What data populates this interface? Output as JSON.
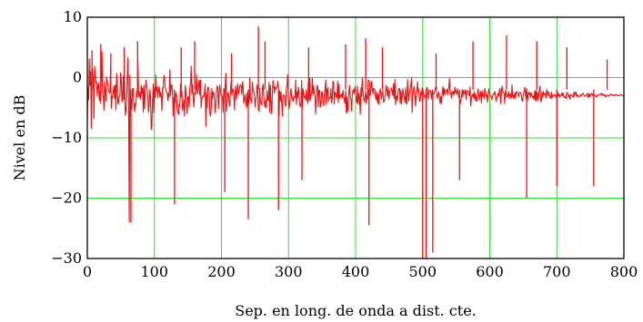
{
  "chart_data": {
    "type": "line",
    "title": "",
    "xlabel": "Sep. en long. de onda a dist. cte.",
    "ylabel": "Nivel en dB",
    "xlim": [
      0,
      800
    ],
    "ylim": [
      -30,
      10
    ],
    "x_ticks": [
      0,
      100,
      200,
      300,
      400,
      500,
      600,
      700,
      800
    ],
    "y_ticks": [
      10,
      0,
      -10,
      -20,
      -30
    ],
    "x_tick_labels": [
      "0",
      "100",
      "200",
      "300",
      "400",
      "500",
      "600",
      "700",
      "800"
    ],
    "y_tick_labels": [
      "10",
      "0",
      "−10",
      "−20",
      "−30"
    ],
    "grid": true,
    "colors": {
      "series": "#ee1111",
      "grid": "#33dd33",
      "frame": "#000000"
    },
    "series": [
      {
        "x_step": 1,
        "x_start": 0,
        "values": [
          -6.7,
          -1.6,
          -3.7,
          3.1,
          -1.3,
          1,
          -8.4,
          1.1,
          1.5,
          -0.3,
          -6.8,
          1.9,
          0.3,
          -0.9,
          -0.7,
          -3.1,
          -1.3,
          -0.9,
          -3.8,
          -2.2,
          -4.2,
          -0.1,
          4.3,
          -2.5,
          -3.3,
          -5.4,
          -0.7,
          -2.3,
          -3.8,
          0.1,
          -0.7,
          -1.3,
          -2.1,
          -2.6,
          -2.3,
          1.7,
          -5.1,
          -3.1,
          -3.4,
          -2.3,
          -1.4,
          -3.5,
          -1.2,
          -5.4,
          0.7,
          -0.8,
          -4.4,
          -4.1,
          -3.1,
          -3.1,
          0.8,
          -0.3,
          -4,
          -3.9,
          0.2,
          -3.6,
          -0.7,
          -6.3,
          -5.4,
          -3.8,
          -0.3,
          3.3,
          -4.8,
          -24,
          0.4,
          -6.4,
          -3.6,
          -5.2,
          -1.8,
          -1.8,
          -4.4,
          -5.7,
          -4.3,
          -4.6,
          -2.2,
          -3.2,
          2.7,
          -2.7,
          -3.2,
          -2.4,
          -3.6,
          -1.3,
          -2.6,
          -1.7,
          -5.7,
          -1.3,
          -5.2,
          -2.4,
          -0.4,
          -1.4,
          -1.9,
          -3.6,
          -5.8,
          -4.4,
          -2,
          -3.2,
          -8.6,
          -8,
          -4.1,
          -1.1,
          -5.8,
          -1.7,
          -3.3,
          0.4,
          -2.2,
          -1.6,
          -3.4,
          -2.1,
          -1.5,
          -3.2,
          -2.4,
          -3.3,
          -5.5,
          -1.7,
          -1.8,
          0.3,
          0.1,
          -1.5,
          -2.1,
          -2.3,
          -2.6,
          -3.8,
          -2.6,
          -3.2,
          1.3,
          -2.9,
          -1.3,
          -1.2,
          -2.5,
          -6.4,
          -3.3,
          -4.9,
          -3.4,
          -2.5,
          -2.9,
          -5.3,
          -5.8,
          -6.1,
          -4.4,
          -4.9,
          -1.1,
          -3.2,
          -2.2,
          -5.4,
          -4.7,
          -3.7,
          -6.4,
          -1.3,
          -2.2,
          -4.5,
          -6,
          -3.2,
          -3.2,
          -4.9,
          -1.6,
          -0.9,
          1.9,
          -2.7,
          -1.1,
          -3.5,
          -4.9,
          -2.4,
          -2.8,
          -2.6,
          0.5,
          -2.2,
          -2.7,
          -1.3,
          -0.4,
          -2.9,
          -0.4,
          -5,
          -3.5,
          -3.1,
          -3,
          -3.2,
          -2.3,
          -1.1,
          -8.1,
          -2.6,
          -5,
          -1.6,
          -1.7,
          -2.2,
          -5.8,
          -6.4,
          -5.2,
          -1.8,
          -3.5,
          -2.4,
          -2.5,
          -3.6,
          -5.8,
          -4.8,
          -2.1,
          -1.4,
          -1.7,
          -5.2,
          -2.7,
          -1.2,
          -2.3,
          -2.9,
          -2.9,
          -3.2,
          -5.8,
          -1.8,
          -3.1,
          -1.4,
          0.7,
          -5.6,
          -4.5,
          -2.5,
          -2.6,
          -3.9,
          -4.7,
          -2.2,
          -0.7,
          -2.9,
          -2.1,
          -1.9,
          -2.7,
          -5.4,
          -2.7,
          -1.4,
          -3.6,
          -2.1,
          -1,
          -2.8,
          -2.1,
          -1.4,
          -1.2,
          -1.4,
          -2.8,
          -0.7,
          -1.4,
          -4.3,
          -3.5,
          -2.8,
          -3.6,
          -5,
          -2.5,
          -4.7,
          -3.2,
          -4.3,
          0,
          -3.6,
          -3.6,
          -4.1,
          -0.7,
          -2.2,
          -2.3,
          -2.8,
          -4.9,
          -3.6,
          -3.3,
          -1.2,
          -2.2,
          -5.3,
          -5.6,
          -1.8,
          -3.8,
          -4.4,
          -4.6,
          -1.8,
          -1.1,
          -3.2,
          -4.3,
          -4.9,
          -3.8,
          -5,
          -2.2,
          -3.8,
          -3.7,
          -0.8,
          -5.8,
          -1.3,
          -4.2,
          -6,
          -2.6,
          -0.5,
          -1.3,
          -2.6,
          -1.5,
          -1.9,
          -1.8,
          -1.6,
          -0.6,
          -1.4,
          -6.4,
          -2.2,
          -3.9,
          -2.4,
          -3.9,
          -6.4,
          -2.9,
          -2.9,
          -3,
          -4.4,
          -4.8,
          -1.8,
          -1.2,
          0.5,
          -3.4,
          -5.2,
          -4.3,
          -2.6,
          -1.8,
          -3.5,
          -3.4,
          -4,
          -3.1,
          -3.4,
          -3.2,
          -0.4,
          -4.5,
          -2.4,
          -3.4,
          -1.6,
          -2.5,
          -4.6,
          -4.8,
          -4.3,
          -0.5,
          -5.1,
          -1.9,
          -2.6,
          -3.3,
          -3.1,
          -3.8,
          -2,
          -3.6,
          -4.3,
          -0.8,
          -3.7,
          -0.1,
          -3.8,
          -2.9,
          -2.7,
          -0.1,
          -2.8,
          -1.4,
          -2.6,
          -2.9,
          -6,
          -3.6,
          -1.3,
          -1.5,
          -4.9,
          -2.1,
          -2.1,
          -4.9,
          -4.5,
          -2.3,
          -2.5,
          -4.2,
          -4.7,
          -2.7,
          -2.1,
          -0.4,
          -4.4,
          -2.1,
          -1.7,
          -4,
          -3.5,
          -3.3,
          -3.4,
          -1.8,
          -4.2,
          -3.4,
          -0.6,
          -0.8,
          -4.4,
          -2.4,
          -2.5,
          -3.2,
          -3.4,
          -0.6,
          -4.1,
          -1.1,
          -3.5,
          -2.9,
          -3.1,
          -2.7,
          -3.4,
          -2.1,
          -2.9,
          -3.8,
          -4.3,
          -2.2,
          -5.9,
          -3.2,
          -5.7,
          -4.4,
          -2.2,
          -1.3,
          -3.4,
          -3.7,
          -5.5,
          -2.9,
          -2.1,
          -2,
          -2.7,
          -1.5,
          -2.4,
          -3.8,
          -4.2,
          -1.4,
          -4.4,
          -2.6,
          -3.4,
          -6.1,
          -1.7,
          -3.2,
          -0.1,
          -2.4,
          -3.6,
          -4,
          -3.5,
          -2.2,
          -4.3,
          -2.9,
          -3.6,
          -0.5,
          -0.4,
          -1,
          -3,
          -1.9,
          -0.6,
          -1.9,
          -2.7,
          -1.8,
          -1.8,
          -2.1,
          -3.4,
          -3.7,
          -2.5,
          -4.2,
          -2.7,
          -4.4,
          -2.4,
          -1.9,
          -2.8,
          -3.6,
          -2.3,
          -2.3,
          -4.1,
          -3.9,
          -3.6,
          -2.4,
          -1.3,
          -2.3,
          -3.1,
          -1.6,
          -3.6,
          -2.5,
          -2.1,
          -2.1,
          -1.7,
          -2.4,
          -3,
          -1,
          -3.5,
          -0.3,
          -4.5,
          -3.2,
          -3,
          -3.9,
          -2.3,
          -1.8,
          -1.8,
          -4.3,
          -2.1,
          -4.4,
          -3.1,
          -1.9,
          -2.9,
          -3.3,
          -4.1,
          -1.7,
          -4.1,
          -4.4,
          -0.3,
          -2.7,
          -3.9,
          -2.3,
          -2,
          -1.1,
          -0.1,
          -5.8,
          -3,
          -2.1,
          -1.5,
          -2.2,
          -4.7,
          -3.2,
          -2.4,
          -0.7,
          -2.3,
          -2,
          -3.9,
          -3.9,
          -2.4,
          -2.9,
          -1.7,
          -1.9,
          -2.6,
          -3.2,
          -3.2,
          -2.8,
          -2.2,
          -1.6,
          -1.8,
          -3.5,
          -2.6,
          -2.1,
          -2.1,
          -2.5,
          -3.6,
          -2.1,
          -2.9,
          -2.7,
          -2.6,
          -2.2,
          -1.6,
          -1.7,
          -2.9,
          -3.5,
          -2.7,
          -2.4,
          -3.3,
          -4.3,
          -3.1,
          -4.3,
          -2.8,
          -1.5,
          -3,
          -1.8,
          -2.8,
          -2.4,
          -2.1,
          -2,
          -2.9,
          -1.9,
          -1.7,
          -0.2,
          -2.7,
          -2.6,
          -3.4,
          -2.3,
          -2.7,
          -2.3,
          -2.9,
          -1.6,
          -2.5,
          -2.3,
          -2.8,
          -1.9,
          -2.4,
          -3.3,
          -3.2,
          -4.4,
          -3.9,
          -3.2,
          -2,
          -3.2,
          -2.1,
          -2.5,
          -2.7,
          -2,
          -3.6,
          -2.3,
          -2.2,
          -2.2,
          -2.9,
          -3,
          -1.5,
          -4.7,
          -3.5,
          -2.8,
          -2.8,
          -3.3,
          -2.3,
          -3.7,
          -2.7,
          -3.9,
          -3.9,
          -2.5,
          -1.9,
          -2.6,
          -3.7,
          -2.7,
          -2.3,
          -4.2,
          -2.2,
          -3.1,
          -2.8,
          -3.5,
          -1.8,
          -2.4,
          -3.1,
          -2.8,
          -4.1,
          -3,
          -1.9,
          -2.5,
          -2.9,
          -3.2,
          -3.2,
          -3.7,
          -2.8,
          -2.7,
          -2.8,
          -2.3,
          -2.9,
          -4,
          -3.3,
          -3.1,
          -2.6,
          -3.1,
          -2.1,
          -1.8,
          -4.3,
          -2.6,
          -1.4,
          -2.5,
          -2.5,
          -2.6,
          -4.3,
          -2.1,
          -2.4,
          -3.3,
          -2.9,
          -3.1,
          -2.3,
          -3.5,
          -2.8,
          -2.7,
          -3.4,
          -1.2,
          -3.3,
          -2.9,
          -3.5,
          -2.5,
          -3.4,
          -2.5,
          -2.3,
          -2.6,
          -2.8,
          -3.2,
          -2.5,
          -2.4,
          -2.6,
          -2.9,
          -3.9,
          -3.9,
          -2.7,
          -2.4,
          -1.6,
          -2.7,
          -3.5,
          -1.8,
          -3.8,
          -2.9,
          -2.4,
          -2.8,
          -2.5,
          -3.3,
          -2.6,
          -2.9,
          -3.4,
          -3.1,
          -3.6,
          -2.2,
          -3.8,
          -2.1,
          -3.9,
          -2.4,
          -3.7,
          -3,
          -2.1,
          -1.4,
          -4,
          -3.9,
          -2.5,
          -3.2,
          -2.3,
          -2.9,
          -2.7,
          -2.6,
          -3.4,
          -2,
          -2.3,
          -3,
          -2.4,
          -2.8,
          -3.2,
          -3.5,
          -2.4,
          -3.4,
          -3,
          -3.1,
          -2.8,
          -3,
          -2.9,
          -3.3,
          -2.9,
          -3.1,
          -2.5,
          -3.1,
          -2.8,
          -3.2,
          -2.9,
          -2.9,
          -2.5,
          -3,
          -2.6,
          -3.3,
          -3.3,
          -3.2,
          -3.5,
          -2.5,
          -2.6,
          -2.6,
          -3.2,
          -2.9,
          -3.6,
          -2.9,
          -2.8,
          -2.9,
          -3.1,
          -3.3,
          -2.4,
          -3,
          -2.5,
          -2.4,
          -3.2,
          -2.8,
          -3,
          -3.2,
          -3.1,
          -3,
          -2.8,
          -3.1,
          -2.9,
          -2.7,
          -2.6,
          -2.9,
          -3.1,
          -3.1,
          -2.9,
          -2.9,
          -2.6,
          -3.3,
          -3.1,
          -2.6,
          -3.2,
          -2.8,
          -2.8,
          -2.6,
          -3,
          -2.9,
          -2.8,
          -2.9,
          -2.9,
          -3.2,
          -3.2,
          -2.9,
          -2.9,
          -2.9,
          -2.8,
          -2.8,
          -2.7,
          -2.9,
          -2.6,
          -2.9,
          -2.8,
          -3,
          -2.8,
          -3.1,
          -3.2,
          -2.9,
          -2.9,
          -3,
          -3.1,
          -3,
          -2.8,
          -2.8,
          -2.9,
          -2.8,
          -2.9,
          -3,
          -2.9,
          -2.9,
          -3,
          -2.8,
          -2.9,
          -2.9,
          -3,
          -3,
          -2.9,
          -2.9,
          -2.8,
          -2.9,
          -2.9,
          -3,
          -3,
          -3
        ]
      }
    ],
    "peaks": [
      {
        "x": 7,
        "y": 4.5
      },
      {
        "x": 20,
        "y": 5.5
      },
      {
        "x": 35,
        "y": 4
      },
      {
        "x": 55,
        "y": 5
      },
      {
        "x": 75,
        "y": 6
      },
      {
        "x": 140,
        "y": 5
      },
      {
        "x": 160,
        "y": 6
      },
      {
        "x": 215,
        "y": 4
      },
      {
        "x": 255,
        "y": 8.5
      },
      {
        "x": 265,
        "y": 6
      },
      {
        "x": 330,
        "y": 5
      },
      {
        "x": 385,
        "y": 5.5
      },
      {
        "x": 415,
        "y": 6.5
      },
      {
        "x": 440,
        "y": 5
      },
      {
        "x": 520,
        "y": 4
      },
      {
        "x": 575,
        "y": 6
      },
      {
        "x": 625,
        "y": 7
      },
      {
        "x": 670,
        "y": 6
      },
      {
        "x": 715,
        "y": 5
      },
      {
        "x": 775,
        "y": 3
      }
    ],
    "dips": [
      {
        "x": 65,
        "y": -24
      },
      {
        "x": 130,
        "y": -21
      },
      {
        "x": 205,
        "y": -19
      },
      {
        "x": 240,
        "y": -23.5
      },
      {
        "x": 285,
        "y": -22
      },
      {
        "x": 320,
        "y": -17
      },
      {
        "x": 420,
        "y": -24.5
      },
      {
        "x": 500,
        "y": -30
      },
      {
        "x": 505,
        "y": -30
      },
      {
        "x": 515,
        "y": -29
      },
      {
        "x": 555,
        "y": -17
      },
      {
        "x": 655,
        "y": -20
      },
      {
        "x": 700,
        "y": -18
      },
      {
        "x": 755,
        "y": -18
      }
    ]
  }
}
